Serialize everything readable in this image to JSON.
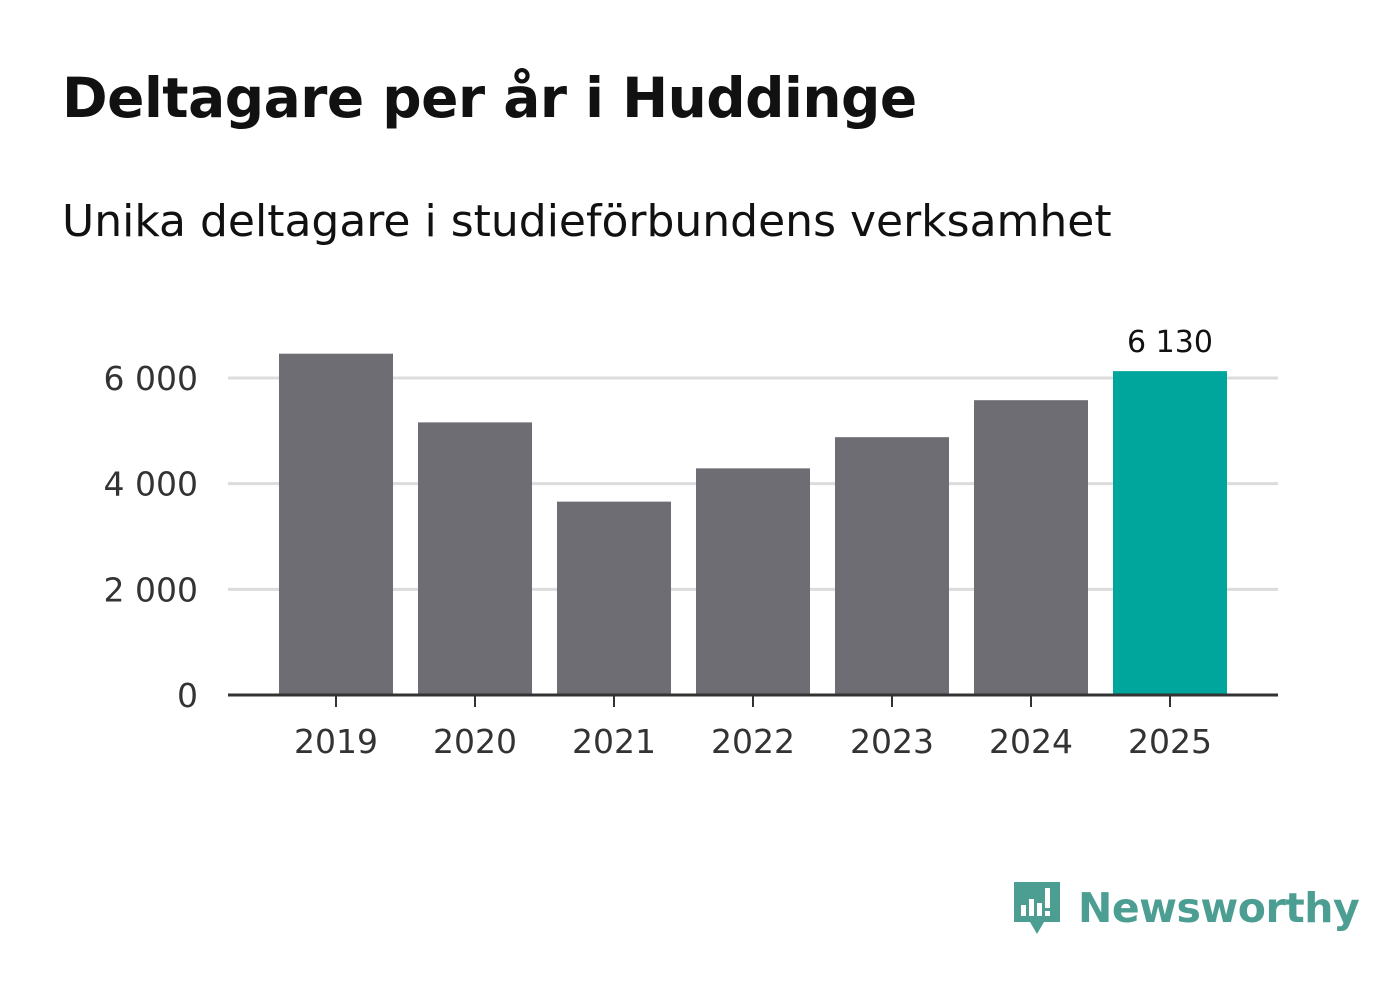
{
  "header": {
    "title": "Deltagare per år i Huddinge",
    "subtitle": "Unika deltagare i studieförbundens verksamhet"
  },
  "brand": {
    "name": "Newsworthy",
    "icon": "newsworthy-logo-icon",
    "color": "#4b9e91"
  },
  "colors": {
    "bar": "#6e6d73",
    "highlight": "#00a69b",
    "grid": "#dcdcdc",
    "axis": "#333333"
  },
  "chart_data": {
    "type": "bar",
    "title": "Deltagare per år i Huddinge",
    "subtitle": "Unika deltagare i studieförbundens verksamhet",
    "xlabel": "",
    "ylabel": "",
    "categories": [
      "2019",
      "2020",
      "2021",
      "2022",
      "2023",
      "2024",
      "2025"
    ],
    "values": [
      6460,
      5160,
      3660,
      4290,
      4880,
      5580,
      6130
    ],
    "highlight_index": 6,
    "data_labels": [
      {
        "index": 6,
        "text": "6 130"
      }
    ],
    "ylim": [
      0,
      6000
    ],
    "yticks": [
      0,
      2000,
      4000,
      6000
    ],
    "ytick_labels": [
      "0",
      "2 000",
      "4 000",
      "6 000"
    ],
    "grid": true,
    "legend": "none"
  }
}
